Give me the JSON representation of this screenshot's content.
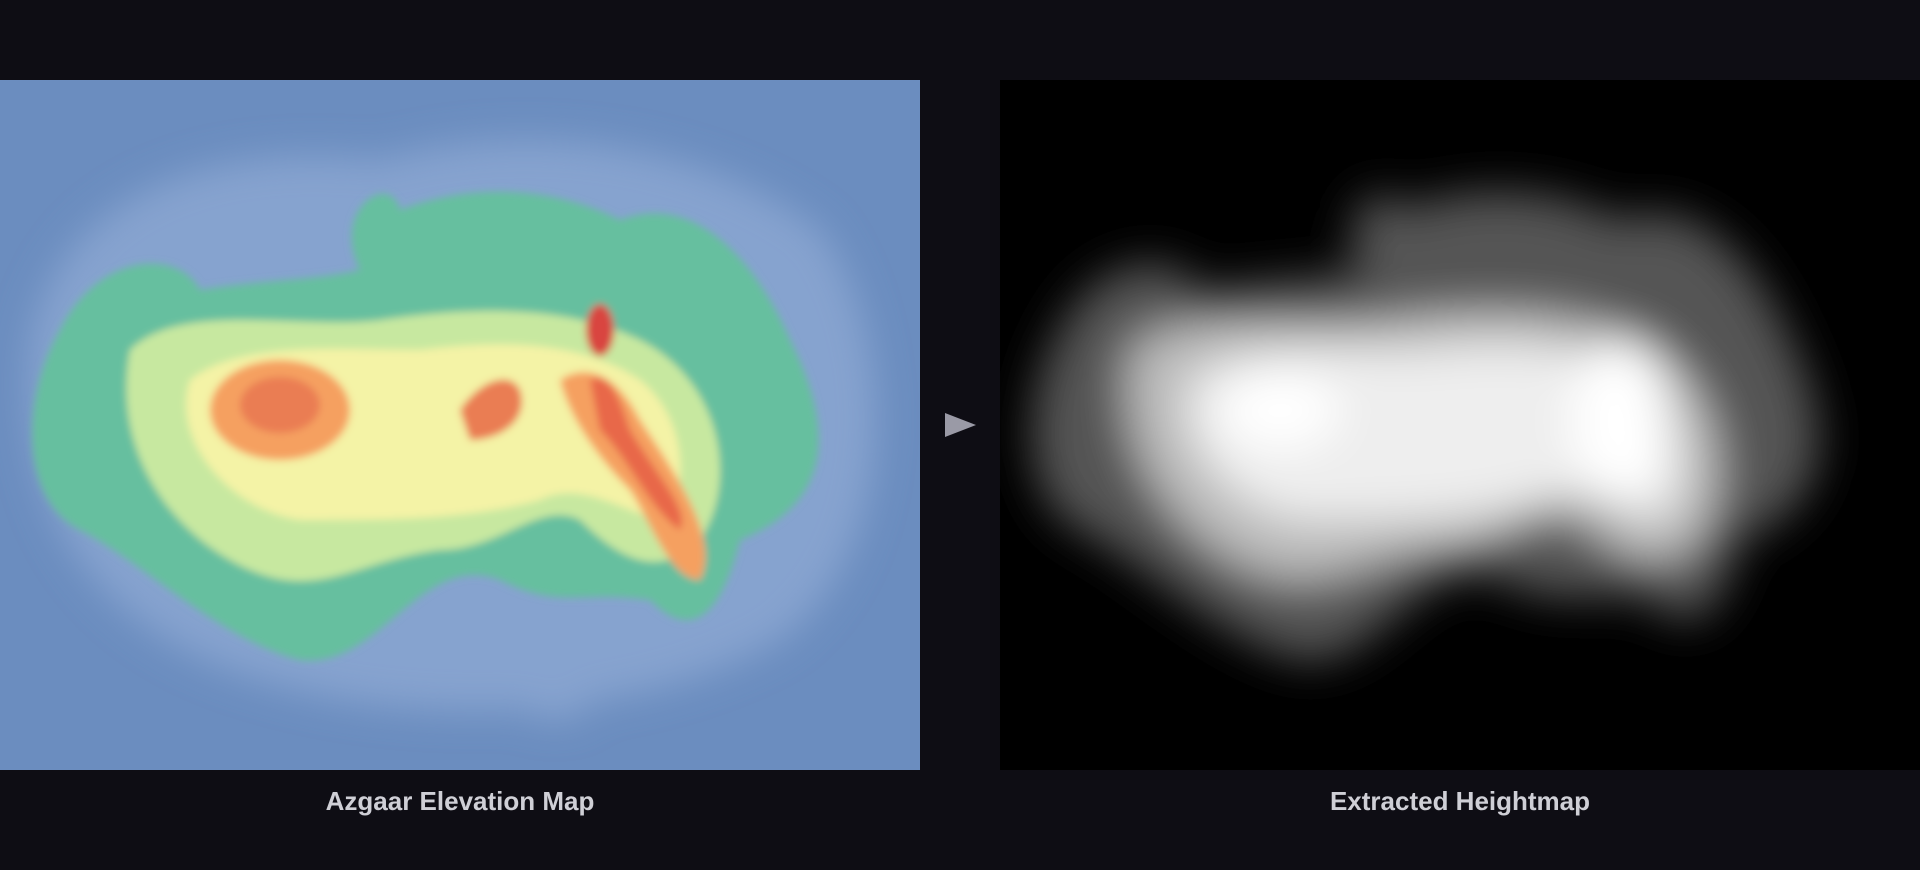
{
  "panels": [
    {
      "caption": "Azgaar Elevation Map"
    },
    {
      "caption": "Extracted Heightmap"
    }
  ],
  "colors": {
    "background": "#0e0d14",
    "ocean": "#6b8dbf",
    "shelf": "#8fa9d2",
    "lowland": "#66bf9f",
    "midland": "#f4f3a6",
    "highland": "#f5a060",
    "peak": "#d9453f"
  },
  "arrow_icon": "arrow-right-icon"
}
